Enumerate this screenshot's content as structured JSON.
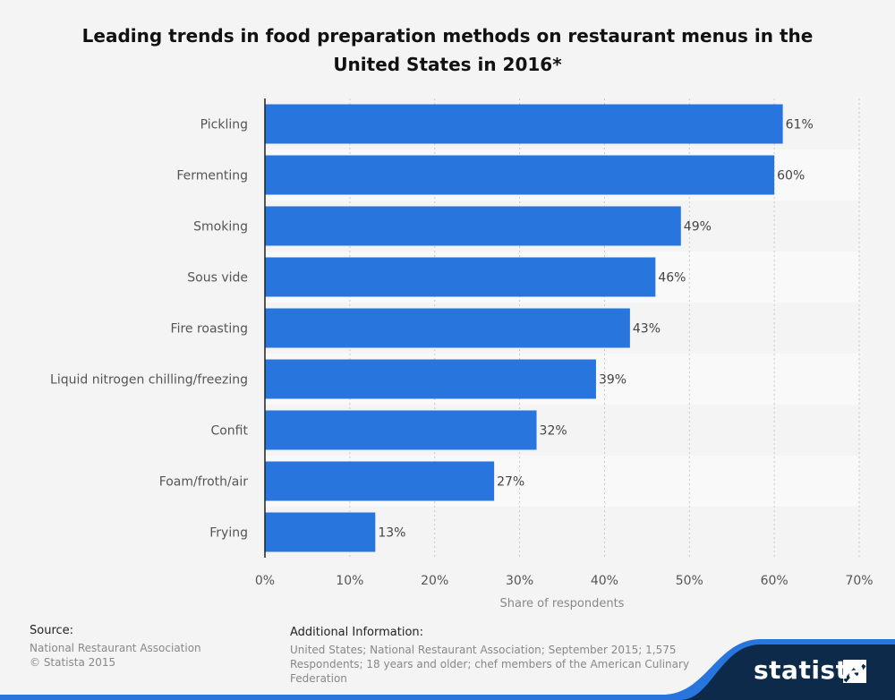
{
  "chart_data": {
    "type": "bar",
    "orientation": "horizontal",
    "title": "Leading trends in food preparation methods on restaurant menus in the United States in 2016*",
    "categories": [
      "Pickling",
      "Fermenting",
      "Smoking",
      "Sous vide",
      "Fire roasting",
      "Liquid nitrogen chilling/freezing",
      "Confit",
      "Foam/froth/air",
      "Frying"
    ],
    "values": [
      61,
      60,
      49,
      46,
      43,
      39,
      32,
      27,
      13
    ],
    "value_labels": [
      "61%",
      "60%",
      "49%",
      "46%",
      "43%",
      "39%",
      "32%",
      "27%",
      "13%"
    ],
    "xlabel": "Share of respondents",
    "ylabel": "",
    "xlim": [
      0,
      70
    ],
    "ticks": [
      0,
      10,
      20,
      30,
      40,
      50,
      60,
      70
    ],
    "tick_labels": [
      "0%",
      "10%",
      "20%",
      "30%",
      "40%",
      "50%",
      "60%",
      "70%"
    ],
    "grid": true,
    "colors": {
      "bar": "#2876dd",
      "band_dark": "#f4f4f4",
      "band_light": "#f9f9f9"
    }
  },
  "footer": {
    "source_heading": "Source:",
    "source_lines": [
      "National Restaurant Association",
      "© Statista 2015"
    ],
    "info_heading": "Additional Information:",
    "info_lines": [
      "United States; National Restaurant Association; September 2015; 1,575",
      "Respondents; 18 years and older; chef members of the American Culinary",
      "Federation"
    ]
  },
  "brand": {
    "name": "statista",
    "colors": {
      "navy": "#0d2a4a",
      "accent": "#2876dd"
    }
  }
}
